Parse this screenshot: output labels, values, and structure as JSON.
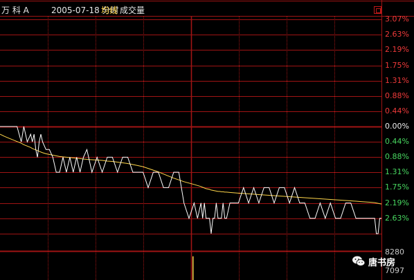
{
  "header": {
    "stock_name": "万 科 A",
    "datetime": "2005-07-18 分时",
    "avg_line_label": "均线",
    "volume_label": "成交量"
  },
  "colors": {
    "grid": "#a01414",
    "price_line": "#ffffff",
    "avg_line": "#ffd64a",
    "positive": "#f03a3a",
    "negative": "#48d860",
    "volume_bar": "#ffd64a"
  },
  "axis": {
    "pct_labels": [
      "3.07%",
      "2.63%",
      "2.19%",
      "1.75%",
      "1.31%",
      "0.88%",
      "0.44%",
      "0.00%",
      "0.44%",
      "0.88%",
      "1.31%",
      "1.75%",
      "2.19%",
      "2.63%"
    ],
    "pct_values": [
      3.07,
      2.63,
      2.19,
      1.75,
      1.31,
      0.88,
      0.44,
      0.0,
      -0.44,
      -0.88,
      -1.31,
      -1.75,
      -2.19,
      -2.63
    ],
    "volume_labels": [
      "8280",
      "7097"
    ]
  },
  "watermark": {
    "icon": "wechat-icon",
    "text": "唐书房"
  },
  "chart_data": {
    "type": "line",
    "yunit": "%",
    "ylim": [
      -3.07,
      3.07
    ],
    "x": [
      0,
      5,
      10,
      15,
      20,
      25,
      28,
      32,
      36,
      38,
      40,
      42,
      44,
      46,
      48,
      50,
      54,
      58,
      62,
      66,
      70,
      74,
      78,
      82,
      86,
      90,
      94,
      98,
      102,
      108,
      114,
      120,
      126,
      132,
      138,
      144,
      150,
      156,
      162,
      168,
      174,
      180,
      186,
      192,
      198,
      204,
      210,
      216,
      222,
      228,
      232,
      236,
      238,
      240,
      242,
      244,
      246,
      248,
      250,
      252,
      254,
      256,
      258,
      260,
      262,
      264,
      266,
      270,
      275,
      280,
      286,
      292,
      298,
      304,
      310,
      316,
      322,
      328,
      334,
      340,
      346,
      352,
      358,
      364,
      370,
      376,
      382,
      388,
      394,
      400,
      406,
      412,
      418,
      424,
      430,
      436,
      440,
      442,
      444,
      446,
      448
    ],
    "series": [
      {
        "values": [
          0.0,
          0.0,
          0.0,
          0.0,
          0.0,
          -0.44,
          0.0,
          -0.44,
          -0.22,
          -0.44,
          -0.22,
          -0.66,
          -0.88,
          -0.44,
          -0.22,
          -0.44,
          -0.66,
          -0.66,
          -0.88,
          -1.31,
          -1.31,
          -0.88,
          -1.31,
          -0.88,
          -1.31,
          -0.88,
          -1.31,
          -0.88,
          -0.66,
          -1.31,
          -0.88,
          -1.31,
          -0.88,
          -0.88,
          -1.31,
          -0.88,
          -0.88,
          -1.31,
          -1.31,
          -1.31,
          -1.75,
          -1.31,
          -1.31,
          -1.75,
          -1.75,
          -1.31,
          -1.31,
          -2.19,
          -2.63,
          -2.19,
          -2.63,
          -2.19,
          -2.63,
          -2.19,
          -2.63,
          -2.63,
          -2.63,
          -3.07,
          -2.63,
          -2.63,
          -2.19,
          -2.63,
          -2.63,
          -2.63,
          -2.19,
          -2.63,
          -2.63,
          -2.19,
          -2.19,
          -2.19,
          -1.75,
          -2.19,
          -1.75,
          -2.19,
          -1.75,
          -1.75,
          -2.19,
          -1.75,
          -1.75,
          -2.19,
          -1.75,
          -2.19,
          -2.19,
          -2.63,
          -2.63,
          -2.19,
          -2.63,
          -2.19,
          -2.63,
          -2.63,
          -2.19,
          -2.19,
          -2.63,
          -2.63,
          -2.63,
          -2.63,
          -2.63,
          -3.07,
          -3.07,
          -2.63,
          -2.63
        ]
      },
      {
        "values": [
          -0.22,
          -0.28,
          -0.33,
          -0.38,
          -0.43,
          -0.48,
          -0.52,
          -0.56,
          -0.6,
          -0.63,
          -0.65,
          -0.67,
          -0.69,
          -0.71,
          -0.73,
          -0.75,
          -0.78,
          -0.8,
          -0.82,
          -0.84,
          -0.86,
          -0.87,
          -0.88,
          -0.89,
          -0.9,
          -0.91,
          -0.92,
          -0.93,
          -0.94,
          -0.95,
          -0.96,
          -0.97,
          -0.99,
          -1.0,
          -1.02,
          -1.04,
          -1.06,
          -1.09,
          -1.12,
          -1.15,
          -1.2,
          -1.25,
          -1.3,
          -1.36,
          -1.42,
          -1.48,
          -1.53,
          -1.58,
          -1.62,
          -1.66,
          -1.69,
          -1.72,
          -1.74,
          -1.76,
          -1.78,
          -1.79,
          -1.8,
          -1.82,
          -1.83,
          -1.84,
          -1.85,
          -1.86,
          -1.86,
          -1.87,
          -1.87,
          -1.88,
          -1.88,
          -1.89,
          -1.9,
          -1.91,
          -1.92,
          -1.93,
          -1.94,
          -1.95,
          -1.96,
          -1.97,
          -1.98,
          -1.99,
          -2.0,
          -2.01,
          -2.02,
          -2.03,
          -2.04,
          -2.05,
          -2.06,
          -2.07,
          -2.08,
          -2.09,
          -2.1,
          -2.11,
          -2.12,
          -2.13,
          -2.14,
          -2.15,
          -2.16,
          -2.17,
          -2.18,
          -2.19,
          -2.2,
          -2.21,
          -2.22
        ]
      }
    ],
    "volume": {
      "ylim": [
        0,
        8280
      ],
      "bars": [
        {
          "x": 278,
          "value": 7097
        }
      ]
    }
  }
}
